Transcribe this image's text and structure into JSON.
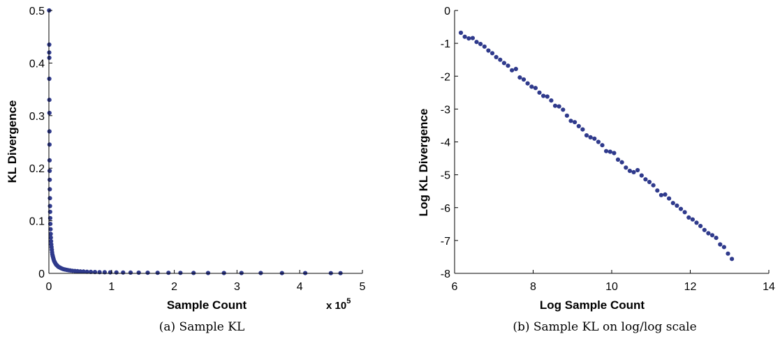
{
  "chart_data": [
    {
      "type": "scatter",
      "panel": "a",
      "caption": "(a) Sample KL",
      "xlabel": "Sample Count",
      "ylabel": "KL Divergence",
      "x_multiplier_label": "x 10",
      "x_multiplier_exponent": "5",
      "xlim": [
        0,
        5
      ],
      "ylim": [
        0,
        0.5
      ],
      "xticks": [
        "0",
        "1",
        "2",
        "3",
        "4",
        "5"
      ],
      "yticks": [
        "0",
        "0.1",
        "0.2",
        "0.3",
        "0.4",
        "0.5"
      ],
      "grid": false,
      "x": [
        0.0047,
        0.0052,
        0.0057,
        0.0063,
        0.0069,
        0.0076,
        0.0084,
        0.0092,
        0.0101,
        0.0111,
        0.0122,
        0.0134,
        0.0148,
        0.0163,
        0.0179,
        0.0197,
        0.0216,
        0.0238,
        0.0262,
        0.0288,
        0.0317,
        0.0349,
        0.0383,
        0.0422,
        0.0464,
        0.051,
        0.0561,
        0.0617,
        0.0679,
        0.0747,
        0.0821,
        0.0903,
        0.0994,
        0.1093,
        0.1202,
        0.1323,
        0.1455,
        0.16,
        0.176,
        0.1936,
        0.213,
        0.2343,
        0.2577,
        0.2835,
        0.3118,
        0.343,
        0.3773,
        0.415,
        0.4565,
        0.5022,
        0.5524,
        0.6077,
        0.6684,
        0.7353,
        0.8088,
        0.8897,
        0.9787,
        1.0765,
        1.1842,
        1.3026,
        1.4329,
        1.5762,
        1.7338,
        1.9072,
        2.0979,
        2.3077,
        2.5385,
        2.7923,
        3.0716,
        3.3787,
        3.7166,
        4.0883,
        4.4971,
        4.65
      ],
      "y": [
        0.5,
        0.435,
        0.42,
        0.41,
        0.37,
        0.33,
        0.305,
        0.27,
        0.245,
        0.215,
        0.195,
        0.178,
        0.16,
        0.143,
        0.128,
        0.117,
        0.105,
        0.094,
        0.084,
        0.075,
        0.068,
        0.061,
        0.055,
        0.05,
        0.045,
        0.04,
        0.036,
        0.033,
        0.03,
        0.027,
        0.024,
        0.022,
        0.02,
        0.018,
        0.016,
        0.015,
        0.013,
        0.012,
        0.011,
        0.0098,
        0.0089,
        0.008,
        0.0073,
        0.0066,
        0.006,
        0.0054,
        0.0049,
        0.0045,
        0.0041,
        0.0037,
        0.0034,
        0.0031,
        0.0028,
        0.0025,
        0.0023,
        0.0021,
        0.0019,
        0.0017,
        0.0016,
        0.0014,
        0.0013,
        0.0012,
        0.0011,
        0.001,
        0.0009,
        0.0008,
        0.0007,
        0.0007,
        0.0006,
        0.0006,
        0.0005,
        0.0005,
        0.0004,
        0.0004
      ]
    },
    {
      "type": "scatter",
      "panel": "b",
      "caption": "(b) Sample KL on log/log scale",
      "xlabel": "Log Sample Count",
      "ylabel": "Log KL Divergence",
      "xlim": [
        6,
        14
      ],
      "ylim": [
        -8,
        0
      ],
      "xticks": [
        "6",
        "8",
        "10",
        "12",
        "14"
      ],
      "yticks": [
        "0",
        "-1",
        "-2",
        "-3",
        "-4",
        "-5",
        "-6",
        "-7",
        "-8"
      ],
      "grid": false,
      "x": [
        6.16,
        6.26,
        6.36,
        6.46,
        6.56,
        6.66,
        6.76,
        6.86,
        6.96,
        7.06,
        7.16,
        7.26,
        7.36,
        7.46,
        7.56,
        7.66,
        7.76,
        7.86,
        7.96,
        8.06,
        8.16,
        8.26,
        8.36,
        8.46,
        8.56,
        8.66,
        8.76,
        8.86,
        8.96,
        9.06,
        9.16,
        9.26,
        9.36,
        9.46,
        9.56,
        9.66,
        9.76,
        9.86,
        9.96,
        10.06,
        10.16,
        10.26,
        10.36,
        10.46,
        10.56,
        10.66,
        10.76,
        10.86,
        10.96,
        11.06,
        11.16,
        11.26,
        11.36,
        11.46,
        11.56,
        11.66,
        11.76,
        11.86,
        11.96,
        12.06,
        12.16,
        12.26,
        12.36,
        12.46,
        12.56,
        12.66,
        12.76,
        12.86,
        12.96,
        13.06
      ],
      "y": [
        -0.68,
        -0.8,
        -0.85,
        -0.84,
        -0.96,
        -1.02,
        -1.1,
        -1.22,
        -1.3,
        -1.42,
        -1.5,
        -1.6,
        -1.68,
        -1.82,
        -1.78,
        -2.04,
        -2.1,
        -2.22,
        -2.32,
        -2.36,
        -2.5,
        -2.6,
        -2.62,
        -2.74,
        -2.9,
        -2.92,
        -3.02,
        -3.2,
        -3.36,
        -3.4,
        -3.52,
        -3.62,
        -3.8,
        -3.86,
        -3.9,
        -4.0,
        -4.1,
        -4.28,
        -4.3,
        -4.34,
        -4.54,
        -4.62,
        -4.78,
        -4.88,
        -4.92,
        -4.86,
        -5.02,
        -5.14,
        -5.22,
        -5.32,
        -5.48,
        -5.62,
        -5.6,
        -5.72,
        -5.86,
        -5.94,
        -6.04,
        -6.14,
        -6.3,
        -6.36,
        -6.46,
        -6.56,
        -6.68,
        -6.78,
        -6.84,
        -6.92,
        -7.12,
        -7.2,
        -7.4,
        -7.56
      ]
    }
  ]
}
